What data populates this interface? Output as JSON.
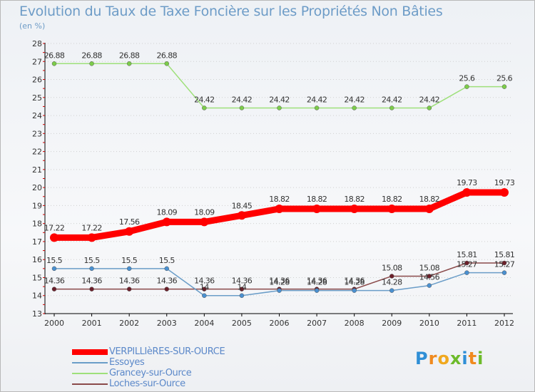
{
  "header": {
    "title": "Evolution du Taux de Taxe Foncière sur les Propriétés Non Bâties",
    "subtitle": "(en %)"
  },
  "colors": {
    "grid": "#d0d0d0",
    "axis": "#000000",
    "tick_text": "#333333",
    "label_text": "#333333"
  },
  "chart_data": {
    "type": "line",
    "title": "Evolution du Taux de Taxe Foncière sur les Propriétés Non Bâties",
    "ylabel": "(en %)",
    "xlabel": "",
    "x": [
      "2000",
      "2001",
      "2002",
      "2003",
      "2004",
      "2005",
      "2006",
      "2007",
      "2008",
      "2009",
      "2010",
      "2011",
      "2012"
    ],
    "ylim": [
      13,
      28
    ],
    "yticks": [
      "13",
      "14",
      "15",
      "16",
      "17",
      "18",
      "19",
      "20",
      "21",
      "22",
      "23",
      "24",
      "25",
      "26",
      "27",
      "28"
    ],
    "grid": "horizontal",
    "legend_position": "bottom-left",
    "series": [
      {
        "name": "VERPILLIèRES-SUR-OURCE",
        "color": "#ff0000",
        "marker_color": "#ff0000",
        "values": [
          17.22,
          17.22,
          17.56,
          18.09,
          18.09,
          18.45,
          18.82,
          18.82,
          18.82,
          18.82,
          18.82,
          19.73,
          19.73
        ],
        "labels": [
          "17.22",
          "17.22",
          "17.56",
          "18.09",
          "18.09",
          "18.45",
          "18.82",
          "18.82",
          "18.82",
          "18.82",
          "18.82",
          "19.73",
          "19.73"
        ]
      },
      {
        "name": "Essoyes",
        "color": "#6a9dc8",
        "marker_color": "#4a90d0",
        "values": [
          15.5,
          15.5,
          15.5,
          15.5,
          14.0,
          14.0,
          14.28,
          14.28,
          14.28,
          14.28,
          14.56,
          15.27,
          15.27
        ],
        "labels": [
          "15.5",
          "15.5",
          "15.5",
          "15.5",
          "14",
          "14",
          "14.28",
          "14.28",
          "14.28",
          "14.28",
          "14.56",
          "15.27",
          "15.27"
        ]
      },
      {
        "name": "Grancey-sur-Ource",
        "color": "#9ee07a",
        "marker_color": "#7ccc4a",
        "values": [
          26.88,
          26.88,
          26.88,
          26.88,
          24.42,
          24.42,
          24.42,
          24.42,
          24.42,
          24.42,
          24.42,
          25.6,
          25.6
        ],
        "labels": [
          "26.88",
          "26.88",
          "26.88",
          "26.88",
          "24.42",
          "24.42",
          "24.42",
          "24.42",
          "24.42",
          "24.42",
          "24.42",
          "25.6",
          "25.6"
        ]
      },
      {
        "name": "Loches-sur-Ource",
        "color": "#8a4a4a",
        "marker_color": "#6b1f2a",
        "values": [
          14.36,
          14.36,
          14.36,
          14.36,
          14.36,
          14.36,
          14.36,
          14.36,
          14.36,
          15.08,
          15.08,
          15.81,
          15.81
        ],
        "labels": [
          "14.36",
          "14.36",
          "14.36",
          "14.36",
          "14.36",
          "14.36",
          "14.36",
          "14.36",
          "14.36",
          "15.08",
          "15.08",
          "15.81",
          "15.81"
        ]
      }
    ]
  },
  "logo": {
    "letters": [
      "P",
      "r",
      "o",
      "x",
      "i",
      "t",
      "i"
    ],
    "colors": [
      "#2f8fd6",
      "#f08a1e",
      "#f0a81e",
      "#6dbb2a",
      "#2f8fd6",
      "#f08a1e",
      "#6dbb2a"
    ]
  }
}
